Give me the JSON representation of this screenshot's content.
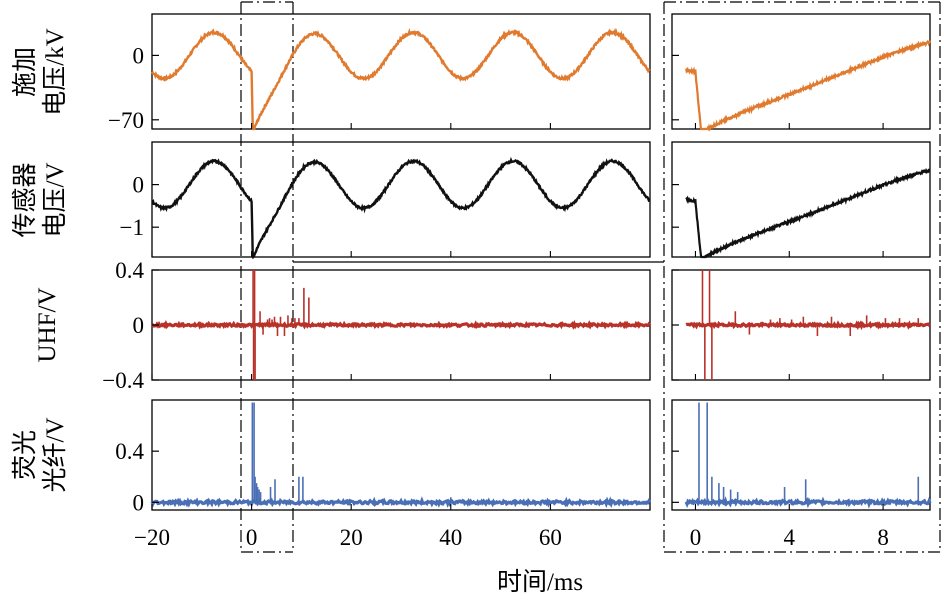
{
  "chart_data": {
    "type": "line",
    "title": "",
    "xlabel": "时间/ms",
    "colors": {
      "applied_voltage": "#e07a2e",
      "sensor_voltage": "#111111",
      "uhf": "#b8322a",
      "fluorescence": "#4a6fb5",
      "frame": "#000000"
    },
    "left_x_axis": {
      "xlim": [
        -20,
        80
      ],
      "ticks": [
        -20,
        0,
        20,
        40,
        60
      ],
      "tick_labels": [
        "−20",
        "0",
        "20",
        "40",
        "60"
      ]
    },
    "right_x_axis": {
      "xlim": [
        -1,
        10
      ],
      "ticks": [
        0,
        4,
        8
      ],
      "tick_labels": [
        "0",
        "4",
        "8"
      ]
    },
    "zoom_window_ms": [
      -0.5,
      10
    ],
    "panels": [
      {
        "id": "applied_voltage",
        "ylabel_lines": [
          "施加",
          "电压/kV"
        ],
        "ylim": [
          -80,
          45
        ],
        "yticks": [
          0,
          -70
        ],
        "ytick_labels": [
          "0",
          "−70"
        ],
        "series": {
          "name": "施加电压",
          "description": "50 Hz sinusoid, amplitude ~25 kV, sharp dip to ~-80 kV at t=0 then recovery to the sinusoid by ~10 ms",
          "amplitude": 25,
          "frequency_hz": 50,
          "key_points": [
            {
              "t": -20,
              "v": -20
            },
            {
              "t": -7.5,
              "v": 25
            },
            {
              "t": 0,
              "v": -12
            },
            {
              "t": 0.3,
              "v": -80
            },
            {
              "t": 3,
              "v": -40
            },
            {
              "t": 6,
              "v": -15
            },
            {
              "t": 10,
              "v": 10
            },
            {
              "t": 12.5,
              "v": 25
            },
            {
              "t": 22.5,
              "v": -25
            },
            {
              "t": 32.5,
              "v": 25
            },
            {
              "t": 80,
              "v": -20
            }
          ]
        }
      },
      {
        "id": "sensor_voltage",
        "ylabel_lines": [
          "传感器",
          "电压/V"
        ],
        "ylim": [
          -1.7,
          1.0
        ],
        "yticks": [
          0,
          -1
        ],
        "ytick_labels": [
          "0",
          "−1"
        ],
        "series": {
          "name": "传感器电压",
          "description": "Tracks applied voltage: sinusoid amplitude ~0.55 V, dip to ~-1.6 V at t=0",
          "amplitude": 0.55,
          "frequency_hz": 50,
          "key_points": [
            {
              "t": -20,
              "v": -0.4
            },
            {
              "t": -7.5,
              "v": 0.55
            },
            {
              "t": 0,
              "v": -0.3
            },
            {
              "t": 0.3,
              "v": -1.6
            },
            {
              "t": 10,
              "v": 0.2
            },
            {
              "t": 12.5,
              "v": 0.55
            },
            {
              "t": 80,
              "v": -0.4
            }
          ]
        }
      },
      {
        "id": "uhf",
        "ylabel_lines": [
          "UHF/V"
        ],
        "ylim": [
          -0.4,
          0.4
        ],
        "yticks": [
          0.4,
          0,
          -0.4
        ],
        "ytick_labels": [
          "0.4",
          "0",
          "−0.4"
        ],
        "series": {
          "name": "UHF",
          "description": "Flat baseline with bursts of spikes after t=0",
          "pulses_ms": [
            {
              "t": 0.3,
              "v": 0.4
            },
            {
              "t": 0.4,
              "v": -0.4
            },
            {
              "t": 0.6,
              "v": 0.4
            },
            {
              "t": 0.7,
              "v": -0.4
            },
            {
              "t": 1.7,
              "v": 0.1
            },
            {
              "t": 2.3,
              "v": -0.07
            },
            {
              "t": 3.2,
              "v": 0.04
            },
            {
              "t": 3.6,
              "v": 0.05
            },
            {
              "t": 4.1,
              "v": 0.04
            },
            {
              "t": 4.6,
              "v": 0.06
            },
            {
              "t": 5.2,
              "v": -0.08
            },
            {
              "t": 5.8,
              "v": 0.06
            },
            {
              "t": 6.6,
              "v": -0.08
            },
            {
              "t": 7.3,
              "v": 0.07
            },
            {
              "t": 8.1,
              "v": 0.05
            },
            {
              "t": 8.7,
              "v": 0.05
            },
            {
              "t": 9.5,
              "v": 0.05
            },
            {
              "t": 10.5,
              "v": 0.27
            },
            {
              "t": 11.5,
              "v": 0.2
            }
          ]
        }
      },
      {
        "id": "fluorescence",
        "ylabel_lines": [
          "荧光",
          "光纤/V"
        ],
        "ylim": [
          -0.06,
          0.8
        ],
        "yticks": [
          0.4,
          0
        ],
        "ytick_labels": [
          "0.4",
          "0"
        ],
        "series": {
          "name": "荧光光纤",
          "description": "Flat baseline near 0 with tall pulses right after t=0",
          "pulses_ms": [
            {
              "t": 0.15,
              "v": 0.78
            },
            {
              "t": 0.5,
              "v": 0.78
            },
            {
              "t": 0.7,
              "v": 0.2
            },
            {
              "t": 1.0,
              "v": 0.15
            },
            {
              "t": 1.2,
              "v": 0.12
            },
            {
              "t": 1.5,
              "v": 0.1
            },
            {
              "t": 1.8,
              "v": 0.08
            },
            {
              "t": 3.8,
              "v": 0.12
            },
            {
              "t": 4.7,
              "v": 0.18
            },
            {
              "t": 9.5,
              "v": 0.2
            },
            {
              "t": 10.3,
              "v": 0.2
            },
            {
              "t": 40,
              "v": 0.04
            }
          ]
        }
      }
    ]
  }
}
